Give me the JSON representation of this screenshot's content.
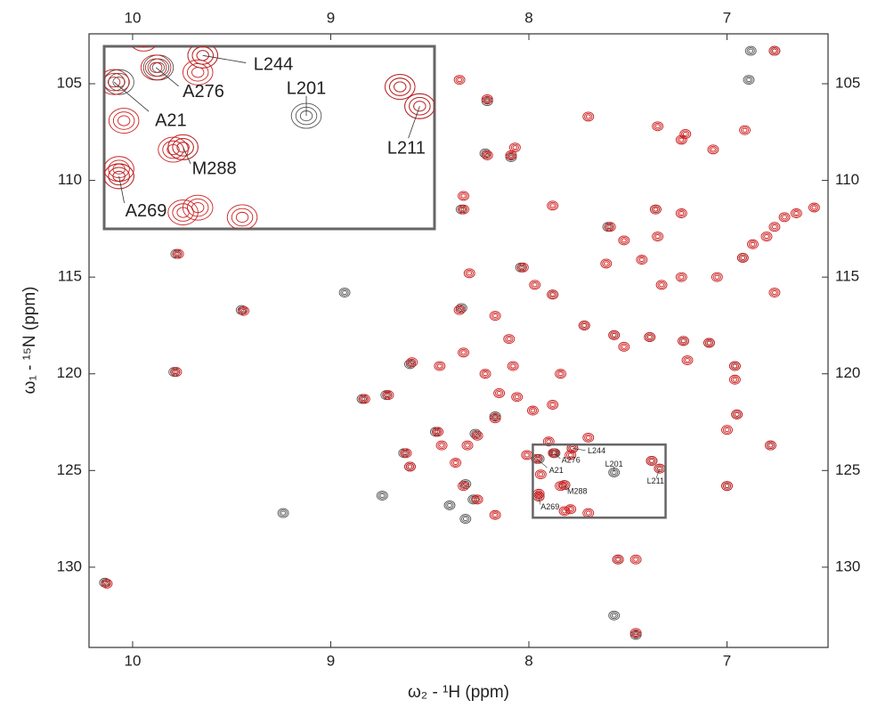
{
  "chart_data": {
    "type": "scatter",
    "xlabel": "ω₂ - ¹H  (ppm)",
    "ylabel": "ω₁ - ¹⁵N  (ppm)",
    "xlim": [
      10.22,
      6.49
    ],
    "ylim": [
      102.42,
      134.15
    ],
    "xticks": [
      10,
      9,
      8,
      7
    ],
    "yticks": [
      105,
      110,
      115,
      120,
      125,
      130
    ],
    "zoom": {
      "xlim": [
        7.98,
        7.31
      ],
      "ylim": [
        123.66,
        127.44
      ]
    },
    "series": [
      {
        "color": "#555555",
        "x": [
          10.14,
          9.78,
          9.79,
          9.45,
          8.93,
          8.72,
          8.84,
          8.63,
          8.6,
          8.74,
          9.24,
          8.47,
          8.6,
          8.34,
          8.22,
          8.09,
          8.21,
          8.34,
          8.04,
          7.88,
          7.72,
          7.57,
          7.39,
          7.22,
          7.09,
          6.96,
          6.95,
          6.78,
          7.0,
          7.38,
          7.55,
          7.46,
          7.57,
          8.17,
          8.27,
          8.32,
          8.28,
          8.32,
          7.95,
          7.87,
          7.78,
          7.57,
          7.34,
          7.82,
          7.95,
          7.6,
          7.36,
          6.92,
          6.88,
          6.76,
          6.89,
          8.4
        ],
        "y": [
          130.8,
          113.8,
          119.9,
          116.7,
          115.8,
          121.1,
          121.3,
          124.1,
          124.8,
          126.3,
          127.2,
          123.0,
          119.5,
          116.6,
          108.6,
          108.8,
          105.9,
          111.5,
          114.5,
          115.9,
          117.5,
          118.0,
          118.1,
          118.3,
          118.4,
          119.6,
          122.1,
          123.7,
          125.8,
          124.5,
          129.6,
          133.5,
          132.5,
          122.2,
          123.1,
          125.7,
          126.5,
          127.5,
          124.4,
          124.1,
          123.85,
          125.1,
          124.9,
          125.75,
          126.35,
          112.4,
          111.5,
          114.0,
          103.3,
          103.3,
          104.8,
          126.8
        ]
      },
      {
        "color": "#cc1f1f",
        "x": [
          10.13,
          9.77,
          9.78,
          9.44,
          8.71,
          8.83,
          8.62,
          8.6,
          8.46,
          8.59,
          8.45,
          8.35,
          8.3,
          8.21,
          8.09,
          8.21,
          8.35,
          8.33,
          8.33,
          8.03,
          7.97,
          7.88,
          7.72,
          7.57,
          7.52,
          7.39,
          7.22,
          7.09,
          7.2,
          6.96,
          6.96,
          6.95,
          7.0,
          6.78,
          7.0,
          7.38,
          7.7,
          7.46,
          7.55,
          7.46,
          8.22,
          8.17,
          8.26,
          8.31,
          8.44,
          8.37,
          8.33,
          8.26,
          8.17,
          8.15,
          8.06,
          7.98,
          7.88,
          7.84,
          8.08,
          8.17,
          8.1,
          8.33,
          7.9,
          8.01,
          7.84,
          7.94,
          7.95,
          7.79,
          7.79,
          7.7,
          7.59,
          7.52,
          7.61,
          7.43,
          7.33,
          7.23,
          7.36,
          7.23,
          7.35,
          7.23,
          7.35,
          7.21,
          7.05,
          6.92,
          6.87,
          6.8,
          6.76,
          6.71,
          6.65,
          6.56,
          6.91,
          6.76,
          7.07,
          6.76,
          7.7,
          7.88,
          8.07,
          7.96,
          7.875,
          7.78,
          7.82,
          7.95,
          7.34,
          7.82
        ],
        "y": [
          130.85,
          113.8,
          119.9,
          116.75,
          121.1,
          121.3,
          124.1,
          124.8,
          123.0,
          119.4,
          119.6,
          116.7,
          114.8,
          108.7,
          108.7,
          105.8,
          104.8,
          110.8,
          111.5,
          114.5,
          115.4,
          115.9,
          117.5,
          118.0,
          118.6,
          118.1,
          118.3,
          118.4,
          119.3,
          119.6,
          120.3,
          122.1,
          122.9,
          123.7,
          125.8,
          124.5,
          127.2,
          129.6,
          129.6,
          133.4,
          120.0,
          122.3,
          123.2,
          123.7,
          123.7,
          124.6,
          125.8,
          126.5,
          127.3,
          121.0,
          121.2,
          121.9,
          121.6,
          120.0,
          119.6,
          117.0,
          118.2,
          118.9,
          123.5,
          124.2,
          125.8,
          125.2,
          126.2,
          127.0,
          124.2,
          123.3,
          112.4,
          113.1,
          114.3,
          114.1,
          115.4,
          115.0,
          111.5,
          111.7,
          112.9,
          107.9,
          107.2,
          107.6,
          115.0,
          114.0,
          113.3,
          112.9,
          112.4,
          111.9,
          111.7,
          111.4,
          107.4,
          103.3,
          108.4,
          115.8,
          106.7,
          111.3,
          108.3,
          124.4,
          124.1,
          123.85,
          125.75,
          126.35,
          124.9,
          127.1
        ]
      }
    ],
    "annotations": [
      {
        "label": "L244",
        "x": 7.78,
        "y": 123.85
      },
      {
        "label": "A276",
        "x": 7.875,
        "y": 124.1
      },
      {
        "label": "L201",
        "x": 7.57,
        "y": 125.1
      },
      {
        "label": "A21",
        "x": 7.96,
        "y": 124.4
      },
      {
        "label": "L211",
        "x": 7.34,
        "y": 124.9
      },
      {
        "label": "M288",
        "x": 7.82,
        "y": 125.75
      },
      {
        "label": "A269",
        "x": 7.95,
        "y": 126.35
      }
    ]
  }
}
